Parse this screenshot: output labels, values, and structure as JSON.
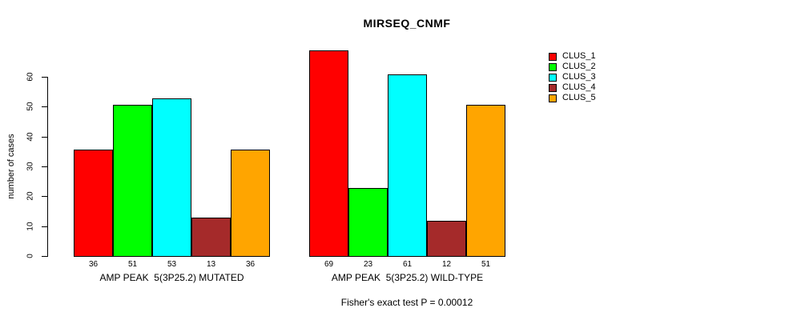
{
  "title": "MIRSEQ_CNMF",
  "y_axis": {
    "label": "number of cases",
    "ticks": [
      0,
      10,
      20,
      30,
      40,
      50,
      60
    ]
  },
  "caption": "Fisher's exact test P = 0.00012",
  "legend": {
    "items": [
      {
        "label": "CLUS_1",
        "color": "#FF0000"
      },
      {
        "label": "CLUS_2",
        "color": "#00FF00"
      },
      {
        "label": "CLUS_3",
        "color": "#00FFFF"
      },
      {
        "label": "CLUS_4",
        "color": "#A52A2A"
      },
      {
        "label": "CLUS_5",
        "color": "#FFA500"
      }
    ]
  },
  "chart_data": {
    "type": "bar",
    "title": "MIRSEQ_CNMF",
    "ylabel": "number of cases",
    "ylim": [
      0,
      69
    ],
    "y_ticks": [
      0,
      10,
      20,
      30,
      40,
      50,
      60
    ],
    "grid": false,
    "legend_position": "right",
    "series_names": [
      "CLUS_1",
      "CLUS_2",
      "CLUS_3",
      "CLUS_4",
      "CLUS_5"
    ],
    "series_colors": [
      "#FF0000",
      "#00FF00",
      "#00FFFF",
      "#A52A2A",
      "#FFA500"
    ],
    "groups": [
      {
        "label": "AMP PEAK  5(3P25.2) MUTATED",
        "values": [
          36,
          51,
          53,
          13,
          36
        ]
      },
      {
        "label": "AMP PEAK  5(3P25.2) WILD-TYPE",
        "values": [
          69,
          23,
          61,
          12,
          51
        ]
      }
    ],
    "annotation": "Fisher's exact test P = 0.00012"
  }
}
